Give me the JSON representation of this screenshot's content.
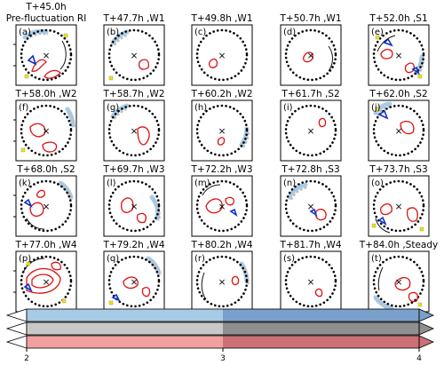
{
  "chart_data": {
    "type": "panel-grid",
    "rows": 4,
    "cols": 5,
    "center_marker": "×",
    "panels": [
      {
        "label": "(a)",
        "title": "T+45.0h",
        "subtitle": "Pre-fluctuation RI"
      },
      {
        "label": "(b)",
        "title": "T+47.7h ,W1"
      },
      {
        "label": "(c)",
        "title": "T+49.8h ,W1"
      },
      {
        "label": "(d)",
        "title": "T+50.7h ,W1"
      },
      {
        "label": "(e)",
        "title": "T+52.0h ,S1"
      },
      {
        "label": "(f)",
        "title": "T+58.0h ,W2"
      },
      {
        "label": "(g)",
        "title": "T+58.7h ,W2"
      },
      {
        "label": "(h)",
        "title": "T+60.2h ,W2"
      },
      {
        "label": "(i)",
        "title": "T+61.7h ,S2"
      },
      {
        "label": "(j)",
        "title": "T+62.0h ,S2"
      },
      {
        "label": "(k)",
        "title": "T+68.0h ,S2"
      },
      {
        "label": "(l)",
        "title": "T+69.7h ,W3"
      },
      {
        "label": "(m)",
        "title": "T+72.2h ,W3"
      },
      {
        "label": "(n)",
        "title": "T+72.8h ,S3"
      },
      {
        "label": "(o)",
        "title": "T+73.7h ,S3"
      },
      {
        "label": "(p)",
        "title": "T+77.0h ,W4"
      },
      {
        "label": "(q)",
        "title": "T+79.2h ,W4"
      },
      {
        "label": "(r)",
        "title": "T+80.2h ,W4"
      },
      {
        "label": "(s)",
        "title": "T+81.7h ,W4"
      },
      {
        "label": "(t)",
        "title": "T+84.0h ,Steady"
      }
    ],
    "colorbars": [
      {
        "name": "blue",
        "colors": [
          "#a8cbe6",
          "#7aa1cc"
        ]
      },
      {
        "name": "gray",
        "colors": [
          "#c8c8c8",
          "#8f8f8f"
        ]
      },
      {
        "name": "red",
        "colors": [
          "#f0a0a0",
          "#cc7077"
        ]
      }
    ],
    "colorbar_ticks": [
      "2",
      "3",
      "4"
    ],
    "colorbar_range": [
      2,
      4
    ],
    "colors": {
      "contour_red": "#dd1111",
      "contour_blue": "#1133cc",
      "contour_black": "#111111",
      "marker_yellow": "#f2e600"
    }
  }
}
